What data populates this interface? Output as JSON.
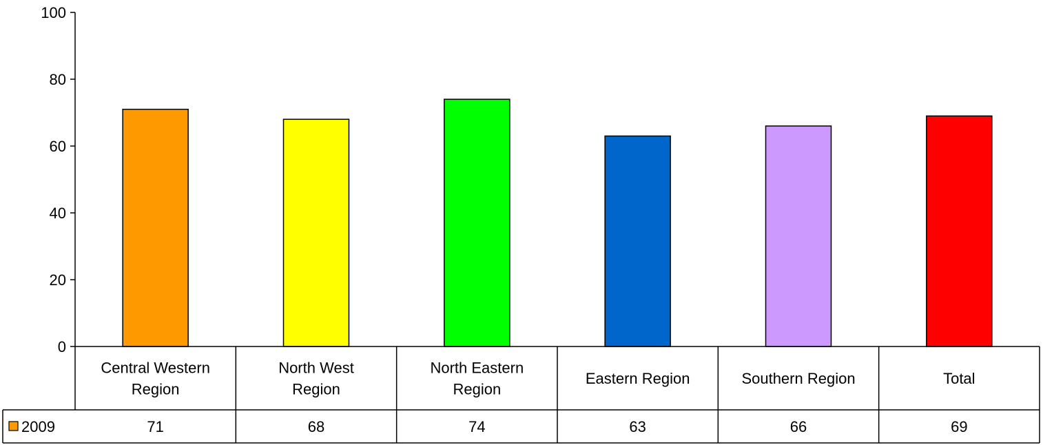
{
  "chart_data": {
    "type": "bar",
    "categories": [
      [
        "Central Western",
        "Region"
      ],
      [
        "North West",
        "Region"
      ],
      [
        "North Eastern",
        "Region"
      ],
      [
        "Eastern Region"
      ],
      [
        "Southern Region"
      ],
      [
        "Total"
      ]
    ],
    "series": [
      {
        "name": "2009",
        "values": [
          71,
          68,
          74,
          63,
          66,
          69
        ],
        "colors": [
          "#FF9900",
          "#FFFF00",
          "#00FF00",
          "#0066CC",
          "#CC99FF",
          "#FF0000"
        ]
      }
    ],
    "ylim": [
      0,
      100
    ],
    "yticks": [
      0,
      20,
      40,
      60,
      80,
      100
    ],
    "title": "",
    "xlabel": "",
    "ylabel": "",
    "legend": "data-table-row",
    "legend_swatch_color": "#FF9900",
    "grid": false
  }
}
